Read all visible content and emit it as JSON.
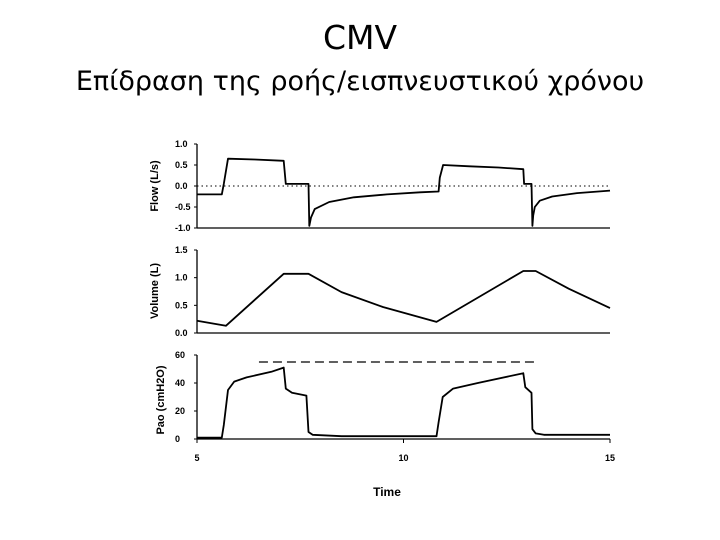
{
  "slide": {
    "title": "CMV",
    "subtitle": "Επίδραση της ροής/εισπνευστικού χρόνου"
  },
  "chart_data": [
    {
      "type": "line",
      "ylabel": "Flow (L/s)",
      "ylim": [
        -1.0,
        1.0
      ],
      "yticks": [
        "1.0",
        "0.5",
        "0.0",
        "-0.5",
        "-1.0"
      ],
      "ytick_values": [
        1.0,
        0.5,
        0.0,
        -0.5,
        -1.0
      ],
      "xlim": [
        5,
        15
      ],
      "zero_line": "dotted",
      "series": [
        {
          "x": [
            5.0,
            5.6,
            5.65,
            5.75,
            6.4,
            7.1,
            7.15,
            7.7,
            7.72,
            7.76,
            7.85,
            8.2,
            8.8,
            9.6,
            10.4,
            10.85,
            10.88,
            10.96,
            11.6,
            12.3,
            12.9,
            12.92,
            13.1,
            13.12,
            13.14,
            13.18,
            13.3,
            13.6,
            14.2,
            15.0
          ],
          "y": [
            -0.2,
            -0.2,
            0.05,
            0.65,
            0.63,
            0.6,
            0.05,
            0.05,
            -0.95,
            -0.75,
            -0.55,
            -0.38,
            -0.27,
            -0.2,
            -0.15,
            -0.13,
            0.2,
            0.5,
            0.47,
            0.44,
            0.4,
            0.05,
            0.05,
            -0.95,
            -0.7,
            -0.5,
            -0.35,
            -0.25,
            -0.17,
            -0.11
          ]
        }
      ]
    },
    {
      "type": "line",
      "ylabel": "Volume (L)",
      "ylim": [
        0.0,
        1.5
      ],
      "yticks": [
        "1.5",
        "1.0",
        "0.5",
        "0.0"
      ],
      "ytick_values": [
        1.5,
        1.0,
        0.5,
        0.0
      ],
      "xlim": [
        5,
        15
      ],
      "series": [
        {
          "x": [
            5.0,
            5.4,
            5.7,
            7.1,
            7.7,
            8.5,
            9.5,
            10.8,
            12.9,
            13.2,
            14.0,
            15.0
          ],
          "y": [
            0.22,
            0.17,
            0.13,
            1.07,
            1.07,
            0.74,
            0.47,
            0.2,
            1.12,
            1.12,
            0.8,
            0.45
          ]
        }
      ]
    },
    {
      "type": "line",
      "ylabel": "Pao (cmH2O)",
      "xlabel": "Time",
      "ylim": [
        0,
        60
      ],
      "yticks": [
        "60",
        "40",
        "20",
        "0"
      ],
      "ytick_values": [
        60,
        40,
        20,
        0
      ],
      "xlim": [
        5,
        15
      ],
      "xticks": [
        "5",
        "10",
        "15"
      ],
      "xtick_values": [
        5,
        10,
        15
      ],
      "reference_line": {
        "y": 55,
        "x": [
          6.5,
          13.2
        ],
        "style": "dashed"
      },
      "series": [
        {
          "x": [
            5.0,
            5.6,
            5.65,
            5.75,
            5.9,
            6.2,
            6.8,
            7.1,
            7.15,
            7.3,
            7.65,
            7.7,
            7.8,
            8.5,
            10.8,
            10.85,
            10.95,
            11.2,
            11.8,
            12.9,
            12.95,
            13.1,
            13.12,
            13.2,
            13.4,
            15.0
          ],
          "y": [
            1,
            1,
            10,
            35,
            41,
            44,
            48,
            51,
            36,
            33,
            31,
            5,
            3,
            2,
            2,
            12,
            30,
            36,
            40,
            47,
            37,
            33,
            7,
            4,
            3,
            3
          ]
        }
      ]
    }
  ]
}
